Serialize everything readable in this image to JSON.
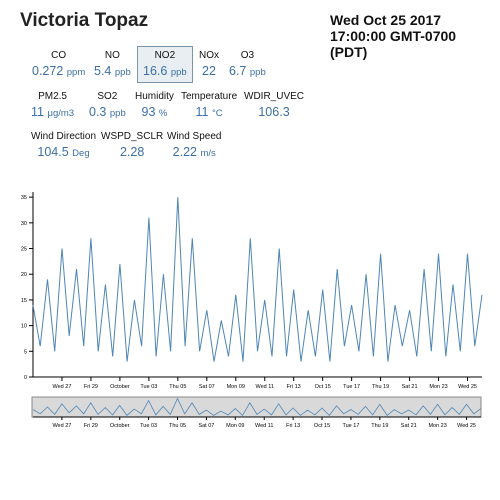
{
  "header": {
    "station": "Victoria Topaz",
    "date_line1": "Wed Oct 25 2017",
    "date_line2": "17:00:00 GMT-0700",
    "date_line3": "(PDT)"
  },
  "metrics": {
    "co": {
      "label": "CO",
      "value": "0.272",
      "unit": "ppm"
    },
    "no": {
      "label": "NO",
      "value": "5.4",
      "unit": "ppb"
    },
    "no2": {
      "label": "NO2",
      "value": "16.6",
      "unit": "ppb"
    },
    "nox": {
      "label": "NOx",
      "value": "22",
      "unit": ""
    },
    "o3": {
      "label": "O3",
      "value": "6.7",
      "unit": "ppb"
    },
    "pm25": {
      "label": "PM2.5",
      "value": "11",
      "unit": "μg/m3"
    },
    "so2": {
      "label": "SO2",
      "value": "0.3",
      "unit": "ppb"
    },
    "humidity": {
      "label": "Humidity",
      "value": "93",
      "unit": "%"
    },
    "temperature": {
      "label": "Temperature",
      "value": "11",
      "unit": "°C"
    },
    "wdir_uvec": {
      "label": "WDIR_UVEC",
      "value": "106.3",
      "unit": ""
    },
    "wind_direction": {
      "label": "Wind Direction",
      "value": "104.5",
      "unit": "Deg"
    },
    "wspd_sclr": {
      "label": "WSPD_SCLR",
      "value": "2.28",
      "unit": ""
    },
    "wind_speed": {
      "label": "Wind Speed",
      "value": "2.22",
      "unit": "m/s"
    }
  },
  "chart_data": {
    "type": "line",
    "title": "",
    "xlabel": "",
    "ylabel": "",
    "ylim": [
      0,
      36
    ],
    "y_ticks": [
      0,
      5,
      10,
      15,
      20,
      25,
      30,
      35
    ],
    "x_range": [
      "2017-09-25",
      "2017-10-26"
    ],
    "x_ticks": [
      "Wed 27",
      "Fri 29",
      "October",
      "Tue 03",
      "Thu 05",
      "Sat 07",
      "Mon 09",
      "Wed 11",
      "Fri 13",
      "Oct 15",
      "Tue 17",
      "Thu 19",
      "Sat 21",
      "Mon 23",
      "Wed 25"
    ],
    "x_tick_dates": [
      "2017-09-27",
      "2017-09-29",
      "2017-10-01",
      "2017-10-03",
      "2017-10-05",
      "2017-10-07",
      "2017-10-09",
      "2017-10-11",
      "2017-10-13",
      "2017-10-15",
      "2017-10-17",
      "2017-10-19",
      "2017-10-21",
      "2017-10-23",
      "2017-10-25"
    ],
    "series": [
      {
        "color": "#4f86b6",
        "x": [
          "2017-09-25",
          "2017-09-25T12:00",
          "2017-09-26",
          "2017-09-26T12:00",
          "2017-09-27",
          "2017-09-27T12:00",
          "2017-09-28",
          "2017-09-28T12:00",
          "2017-09-29",
          "2017-09-29T12:00",
          "2017-09-30",
          "2017-09-30T12:00",
          "2017-10-01",
          "2017-10-01T12:00",
          "2017-10-02",
          "2017-10-02T12:00",
          "2017-10-03",
          "2017-10-03T12:00",
          "2017-10-04",
          "2017-10-04T12:00",
          "2017-10-05",
          "2017-10-05T12:00",
          "2017-10-06",
          "2017-10-06T12:00",
          "2017-10-07",
          "2017-10-07T12:00",
          "2017-10-08",
          "2017-10-08T12:00",
          "2017-10-09",
          "2017-10-09T12:00",
          "2017-10-10",
          "2017-10-10T12:00",
          "2017-10-11",
          "2017-10-11T12:00",
          "2017-10-12",
          "2017-10-12T12:00",
          "2017-10-13",
          "2017-10-13T12:00",
          "2017-10-14",
          "2017-10-14T12:00",
          "2017-10-15",
          "2017-10-15T12:00",
          "2017-10-16",
          "2017-10-16T12:00",
          "2017-10-17",
          "2017-10-17T12:00",
          "2017-10-18",
          "2017-10-18T12:00",
          "2017-10-19",
          "2017-10-19T12:00",
          "2017-10-20",
          "2017-10-20T12:00",
          "2017-10-21",
          "2017-10-21T12:00",
          "2017-10-22",
          "2017-10-22T12:00",
          "2017-10-23",
          "2017-10-23T12:00",
          "2017-10-24",
          "2017-10-24T12:00",
          "2017-10-25",
          "2017-10-25T12:00",
          "2017-10-26"
        ],
        "values": [
          14,
          6,
          19,
          5,
          25,
          8,
          21,
          6,
          27,
          5,
          18,
          4,
          22,
          3,
          15,
          6,
          31,
          4,
          20,
          5,
          35,
          6,
          27,
          5,
          13,
          3,
          11,
          4,
          16,
          3,
          27,
          5,
          15,
          4,
          25,
          4,
          17,
          3,
          13,
          4,
          17,
          3,
          21,
          6,
          14,
          5,
          20,
          4,
          24,
          3,
          14,
          6,
          13,
          4,
          21,
          5,
          24,
          4,
          18,
          5,
          24,
          6,
          16
        ]
      }
    ]
  },
  "overview": {
    "x_ticks": [
      "Wed 27",
      "Fri 29",
      "October",
      "Tue 03",
      "Thu 05",
      "Sat 07",
      "Mon 09",
      "Wed 11",
      "Fri 13",
      "Oct 15",
      "Tue 17",
      "Thu 19",
      "Sat 21",
      "Mon 23",
      "Wed 25"
    ]
  }
}
